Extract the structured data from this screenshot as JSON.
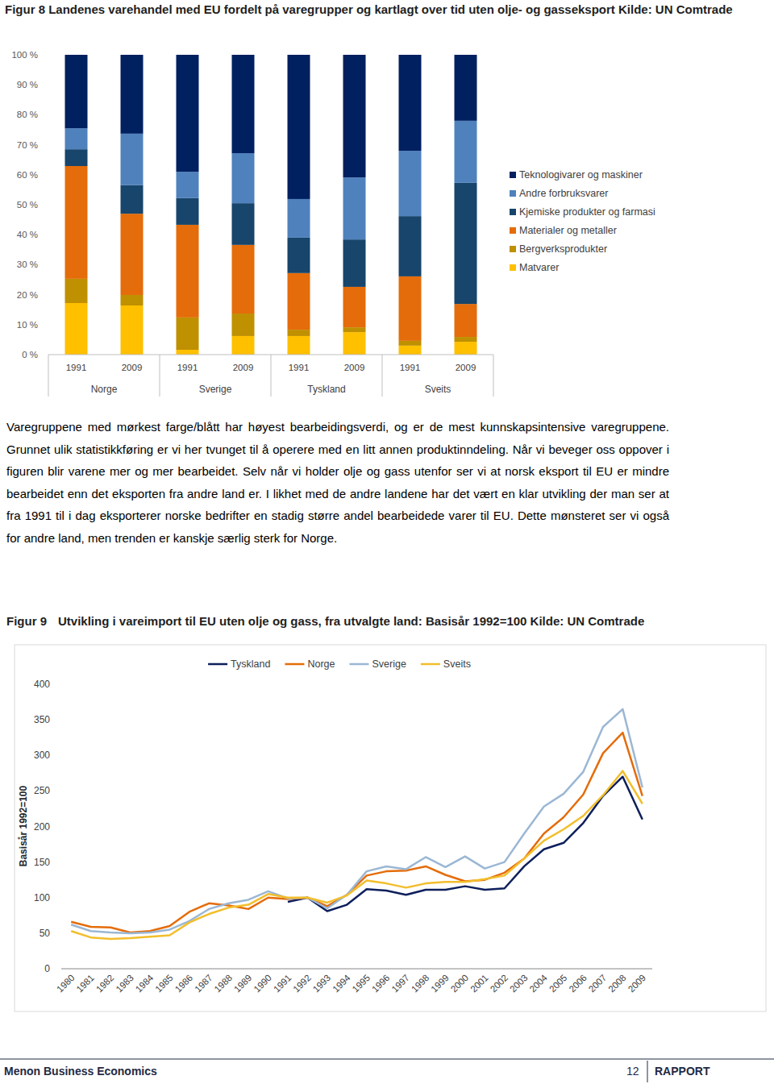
{
  "chart_data": [
    {
      "type": "bar",
      "stacked": true,
      "legend": "right",
      "grid": false,
      "title": "Figur 8 Landenes varehandel med EU fordelt på varegrupper og kartlagt over tid uten olje- og gasseksport Kilde: UN Comtrade",
      "categories": [
        "1991",
        "2009",
        "1991",
        "2009",
        "1991",
        "2009",
        "1991",
        "2009"
      ],
      "groups": [
        "Norge",
        "Sverige",
        "Tyskland",
        "Sveits"
      ],
      "ylim": [
        0,
        100
      ],
      "yticks": [
        {
          "value": 0,
          "label": "0 %"
        },
        {
          "value": 10,
          "label": "10 %"
        },
        {
          "value": 20,
          "label": "20 %"
        },
        {
          "value": 30,
          "label": "30 %"
        },
        {
          "value": 40,
          "label": "40 %"
        },
        {
          "value": 50,
          "label": "50 %"
        },
        {
          "value": 60,
          "label": "60 %"
        },
        {
          "value": 70,
          "label": "70 %"
        },
        {
          "value": 80,
          "label": "80 %"
        },
        {
          "value": 90,
          "label": "90 %"
        },
        {
          "value": 100,
          "label": "100 %"
        }
      ],
      "series": [
        {
          "name": "Matvarer",
          "color": "#ffc000",
          "values": [
            17.2,
            16.4,
            1.6,
            6.2,
            6.2,
            7.5,
            3.0,
            4.3
          ]
        },
        {
          "name": "Bergverksprodukter",
          "color": "#bf9000",
          "values": [
            8.1,
            3.5,
            10.8,
            7.5,
            2.1,
            1.6,
            1.6,
            1.6
          ]
        },
        {
          "name": "Materialer og metaller",
          "color": "#e46c0a",
          "values": [
            37.6,
            27.1,
            30.9,
            22.9,
            18.9,
            13.5,
            21.5,
            11.0
          ]
        },
        {
          "name": "Kjemiske produkter og farmasi",
          "color": "#17456b",
          "values": [
            5.6,
            9.5,
            8.9,
            13.9,
            11.8,
            15.8,
            20.1,
            40.4
          ]
        },
        {
          "name": "Andre forbruksvarer",
          "color": "#4f81bd",
          "values": [
            7.0,
            17.2,
            8.8,
            16.7,
            12.9,
            20.7,
            21.8,
            20.7
          ]
        },
        {
          "name": "Teknologivarer og maskiner",
          "color": "#002060",
          "values": [
            24.5,
            26.3,
            39.0,
            32.8,
            48.1,
            40.9,
            32.0,
            22.0
          ]
        }
      ]
    },
    {
      "type": "line",
      "legend": "top",
      "grid": false,
      "figure_label": "Figur 9",
      "title": "Utvikling i vareimport til EU uten olje og gass, fra utvalgte land: Basisår 1992=100 Kilde: UN Comtrade",
      "y_label": "Basisår 1992=100",
      "categories": [
        "1980",
        "1981",
        "1982",
        "1983",
        "1984",
        "1985",
        "1986",
        "1987",
        "1988",
        "1989",
        "1990",
        "1991",
        "1992",
        "1993",
        "1994",
        "1995",
        "1996",
        "1997",
        "1998",
        "1999",
        "2000",
        "2001",
        "2002",
        "2003",
        "2004",
        "2005",
        "2006",
        "2007",
        "2008",
        "2009"
      ],
      "ylim": [
        0,
        400
      ],
      "yticks": [
        0,
        50,
        100,
        150,
        200,
        250,
        300,
        350,
        400
      ],
      "series": [
        {
          "name": "Tyskland",
          "color": "#0d1f5c",
          "values": [
            null,
            null,
            null,
            null,
            null,
            null,
            null,
            null,
            null,
            null,
            null,
            94,
            100,
            81,
            90,
            112,
            110,
            104,
            111,
            111,
            116,
            111,
            113,
            144,
            168,
            177,
            205,
            243,
            270,
            210
          ]
        },
        {
          "name": "Norge",
          "color": "#e46c0a",
          "values": [
            66,
            59,
            58,
            51,
            53,
            60,
            80,
            92,
            89,
            84,
            100,
            98,
            100,
            88,
            104,
            131,
            137,
            138,
            144,
            132,
            123,
            125,
            135,
            155,
            190,
            213,
            245,
            303,
            332,
            243
          ]
        },
        {
          "name": "Sverige",
          "color": "#9bb7d4",
          "values": [
            62,
            53,
            51,
            50,
            51,
            55,
            67,
            84,
            92,
            97,
            109,
            99,
            100,
            85,
            104,
            137,
            144,
            140,
            157,
            143,
            158,
            141,
            150,
            190,
            228,
            246,
            277,
            340,
            365,
            255
          ]
        },
        {
          "name": "Sveits",
          "color": "#f2be2c",
          "values": [
            53,
            44,
            42,
            43,
            45,
            47,
            65,
            77,
            86,
            90,
            105,
            100,
            100,
            93,
            103,
            124,
            120,
            114,
            120,
            122,
            122,
            126,
            131,
            155,
            180,
            196,
            215,
            244,
            278,
            232
          ]
        }
      ]
    }
  ],
  "document": {
    "paragraph": "Varegruppene med mørkest farge/blått har høyest bearbeidingsverdi, og er de mest kunnskapsintensive varegruppene. Grunnet ulik statistikkføring er vi her tvunget til å operere med en litt annen produktinndeling. Når vi beveger oss oppover i figuren blir varene mer og mer bearbeidet. Selv når vi holder olje og gass utenfor ser vi at norsk eksport til EU er mindre bearbeidet enn det eksporten fra andre land er. I likhet med de andre landene har det vært en klar utvikling der man ser at fra 1991 til i dag eksporterer norske bedrifter en stadig større andel bearbeidede varer til EU. Dette mønsteret ser vi også for andre land, men trenden er kanskje særlig sterk for Norge.",
    "footer": {
      "left": "Menon Business Economics",
      "page": "12",
      "right": "RAPPORT"
    }
  }
}
